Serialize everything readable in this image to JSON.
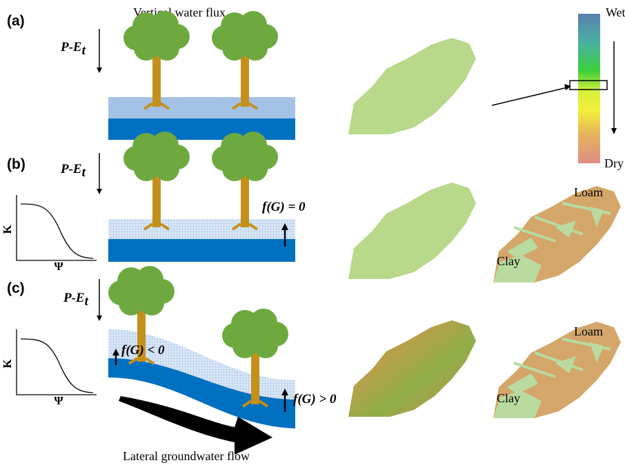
{
  "panels": [
    {
      "label": "(a)",
      "flux": {
        "main": "P-E",
        "sub": "t"
      },
      "title": "Vertical water flux"
    },
    {
      "label": "(b)",
      "flux": {
        "main": "P-E",
        "sub": "t"
      },
      "annotation": "f(G) = 0",
      "y_axis": "K",
      "x_axis": "Ψ"
    },
    {
      "label": "(c)",
      "flux": {
        "main": "P-E",
        "sub": "t"
      },
      "annotations": [
        "f(G) < 0",
        "f(G) > 0"
      ],
      "y_axis": "K",
      "x_axis": "Ψ",
      "caption": "Lateral groundwater flow"
    }
  ],
  "colorbar": {
    "top": "Wet",
    "bottom": "Dry"
  },
  "soil_maps": [
    {
      "top": "Loam",
      "bottom": "Clay"
    },
    {
      "top": "Loam",
      "bottom": "Clay"
    }
  ]
}
